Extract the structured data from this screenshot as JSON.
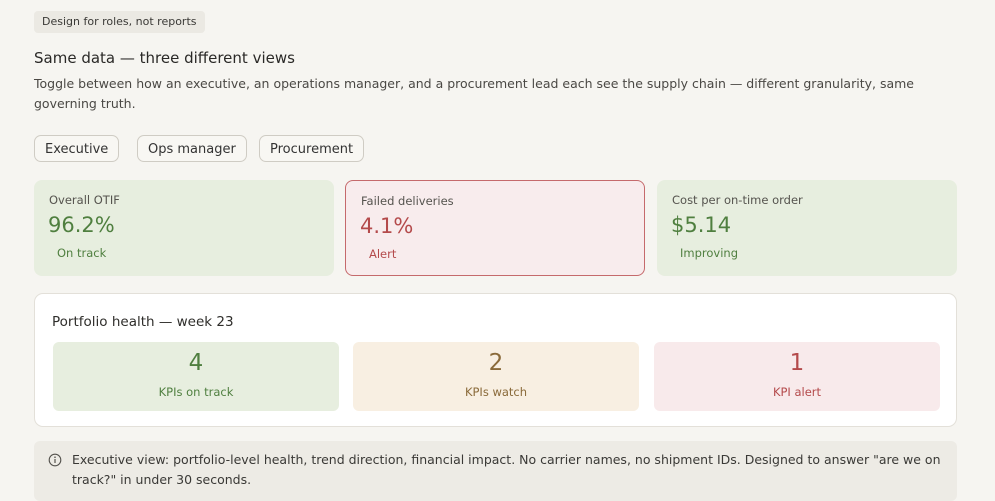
{
  "header": {
    "tag": "Design for roles, not reports",
    "title": "Same data — three different views",
    "description": "Toggle between how an executive, an operations manager, and a procurement lead each see the supply chain — different granularity, same governing truth."
  },
  "tabs": [
    "Executive",
    "Ops manager",
    "Procurement"
  ],
  "kpis": [
    {
      "label": "Overall OTIF",
      "value": "96.2%",
      "status": "On track"
    },
    {
      "label": "Failed deliveries",
      "value": "4.1%",
      "status": "Alert"
    },
    {
      "label": "Cost per on-time order",
      "value": "$5.14",
      "status": "Improving"
    }
  ],
  "portfolio": {
    "title": "Portfolio health — week 23",
    "items": [
      {
        "value": "4",
        "label": "KPIs on track"
      },
      {
        "value": "2",
        "label": "KPIs watch"
      },
      {
        "value": "1",
        "label": "KPI alert"
      }
    ]
  },
  "note": "Executive view: portfolio-level health, trend direction, financial impact. No carrier names, no shipment IDs. Designed to answer \"are we on track?\" in under 30 seconds."
}
